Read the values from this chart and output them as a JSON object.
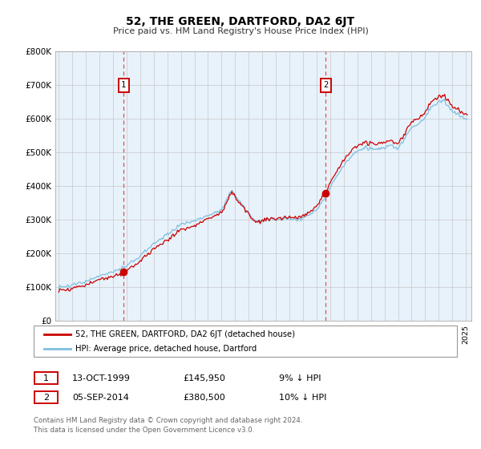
{
  "title": "52, THE GREEN, DARTFORD, DA2 6JT",
  "subtitle": "Price paid vs. HM Land Registry's House Price Index (HPI)",
  "ylim": [
    0,
    800000
  ],
  "yticks": [
    0,
    100000,
    200000,
    300000,
    400000,
    500000,
    600000,
    700000,
    800000
  ],
  "ytick_labels": [
    "£0",
    "£100K",
    "£200K",
    "£300K",
    "£400K",
    "£500K",
    "£600K",
    "£700K",
    "£800K"
  ],
  "purchase1_year": 1999.79,
  "purchase1_price": 145950,
  "purchase2_year": 2014.67,
  "purchase2_price": 380500,
  "hpi_color": "#7fbfdf",
  "property_color": "#cc0000",
  "bg_shaded_color": "#e8f2fb",
  "bg_color": "#ffffff",
  "grid_color": "#c8c8c8",
  "dashed_line_color": "#e05050",
  "legend_label1": "52, THE GREEN, DARTFORD, DA2 6JT (detached house)",
  "legend_label2": "HPI: Average price, detached house, Dartford",
  "annotation1_date": "13-OCT-1999",
  "annotation1_price": "£145,950",
  "annotation1_hpi": "9% ↓ HPI",
  "annotation2_date": "05-SEP-2014",
  "annotation2_price": "£380,500",
  "annotation2_hpi": "10% ↓ HPI",
  "footnote": "Contains HM Land Registry data © Crown copyright and database right 2024.\nThis data is licensed under the Open Government Licence v3.0."
}
